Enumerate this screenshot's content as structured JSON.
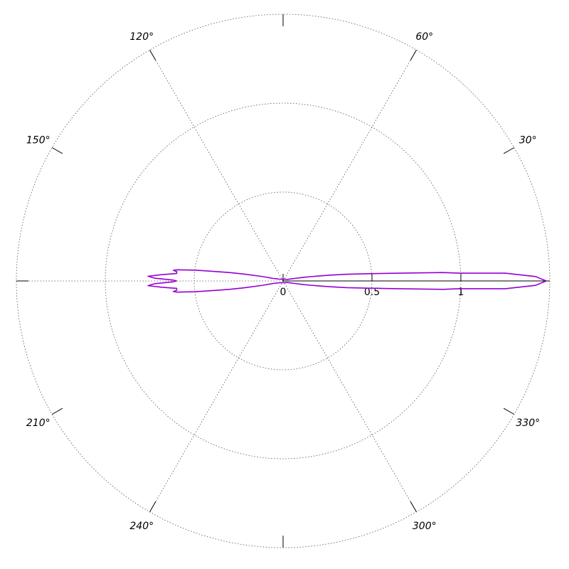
{
  "chart_data": {
    "type": "line",
    "projection": "polar",
    "theta_unit": "degrees",
    "rlim": [
      0,
      1.5
    ],
    "r_ticks": [
      0,
      0.5,
      1
    ],
    "r_tick_labels": [
      "0",
      "0.5",
      "1"
    ],
    "r_grid": [
      0.5,
      1.0,
      1.5
    ],
    "theta_grid": [
      0,
      60,
      120,
      180,
      240,
      300
    ],
    "theta_labels": [
      {
        "angle": 30,
        "text": "30°"
      },
      {
        "angle": 60,
        "text": "60°"
      },
      {
        "angle": 120,
        "text": "120°"
      },
      {
        "angle": 150,
        "text": "150°"
      },
      {
        "angle": 210,
        "text": "210°"
      },
      {
        "angle": 240,
        "text": "240°"
      },
      {
        "angle": 300,
        "text": "300°"
      },
      {
        "angle": 330,
        "text": "330°"
      }
    ],
    "theta_ticks": [
      0,
      30,
      60,
      90,
      120,
      150,
      180,
      210,
      240,
      270,
      300,
      330
    ],
    "grid": true,
    "series": [
      {
        "color": "#9400d3",
        "points": [
          [
            0,
            1.48
          ],
          [
            1,
            1.42
          ],
          [
            2,
            1.25
          ],
          [
            2.5,
            1.0
          ],
          [
            3,
            0.9
          ],
          [
            4,
            0.62
          ],
          [
            5,
            0.46
          ],
          [
            6,
            0.36
          ],
          [
            7,
            0.27
          ],
          [
            8,
            0.2
          ],
          [
            9,
            0.15
          ],
          [
            10,
            0.12
          ],
          [
            12,
            0.07
          ],
          [
            14,
            0.05
          ],
          [
            18,
            0.03
          ],
          [
            25,
            0.02
          ],
          [
            40,
            0.015
          ],
          [
            90,
            0.01
          ],
          [
            140,
            0.015
          ],
          [
            155,
            0.025
          ],
          [
            162,
            0.04
          ],
          [
            166,
            0.06
          ],
          [
            168,
            0.12
          ],
          [
            170,
            0.22
          ],
          [
            171,
            0.3
          ],
          [
            172,
            0.38
          ],
          [
            173,
            0.5
          ],
          [
            174,
            0.6
          ],
          [
            174.5,
            0.62
          ],
          [
            175,
            0.6
          ],
          [
            176,
            0.6
          ],
          [
            177,
            0.68
          ],
          [
            178,
            0.76
          ],
          [
            178.8,
            0.72
          ],
          [
            179.5,
            0.62
          ],
          [
            180,
            0.6
          ],
          [
            180.5,
            0.62
          ],
          [
            181.2,
            0.72
          ],
          [
            182,
            0.76
          ],
          [
            183,
            0.68
          ],
          [
            184,
            0.6
          ],
          [
            185,
            0.6
          ],
          [
            185.5,
            0.62
          ],
          [
            186,
            0.6
          ],
          [
            187,
            0.5
          ],
          [
            188,
            0.38
          ],
          [
            189,
            0.3
          ],
          [
            190,
            0.22
          ],
          [
            192,
            0.12
          ],
          [
            194,
            0.06
          ],
          [
            198,
            0.04
          ],
          [
            205,
            0.025
          ],
          [
            220,
            0.015
          ],
          [
            270,
            0.01
          ],
          [
            320,
            0.015
          ],
          [
            335,
            0.02
          ],
          [
            342,
            0.03
          ],
          [
            346,
            0.05
          ],
          [
            348,
            0.07
          ],
          [
            350,
            0.12
          ],
          [
            351,
            0.15
          ],
          [
            352,
            0.2
          ],
          [
            353,
            0.27
          ],
          [
            354,
            0.36
          ],
          [
            355,
            0.46
          ],
          [
            356,
            0.62
          ],
          [
            357,
            0.9
          ],
          [
            357.5,
            1.0
          ],
          [
            358,
            1.25
          ],
          [
            359,
            1.42
          ],
          [
            360,
            1.48
          ]
        ]
      }
    ]
  }
}
